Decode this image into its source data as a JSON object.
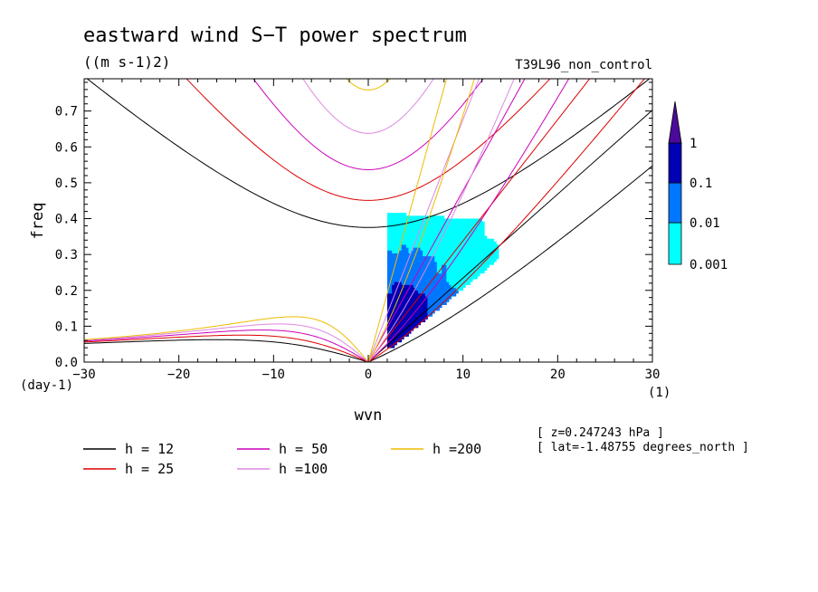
{
  "chart_data": {
    "type": "heatmap",
    "title": "eastward wind S−T power spectrum",
    "subtitle": "((m s-1)2)",
    "run_label": "T39L96_non_control",
    "xlabel": "wvn",
    "x_unit": "(1)",
    "ylabel": "freq",
    "y_unit": "(day-1)",
    "xlim": [
      -30,
      30
    ],
    "ylim": [
      0,
      0.79
    ],
    "x_ticks": [
      "-30",
      "-20",
      "-10",
      "0",
      "10",
      "20",
      "30"
    ],
    "y_ticks": [
      "0.0",
      "0.1",
      "0.2",
      "0.3",
      "0.4",
      "0.5",
      "0.6",
      "0.7"
    ],
    "colorbar": {
      "levels": [
        "0.001",
        "0.01",
        "0.1",
        "1"
      ],
      "colors": [
        "#00ffff",
        "#0077ff",
        "#0000b4",
        "#4b0a9a"
      ]
    },
    "shading": {
      "kmin": 2,
      "kmax": 16,
      "fmin": 0.04,
      "fmax": 0.42,
      "peak_wvn": 3.5,
      "peak_freq": 0.13
    },
    "dispersion_curves": [
      {
        "name": "h = 12",
        "h": 12,
        "color": "#000000"
      },
      {
        "name": "h = 25",
        "h": 25,
        "color": "#dd0000"
      },
      {
        "name": "h = 50",
        "h": 50,
        "color": "#cc00bb"
      },
      {
        "name": "h =100",
        "h": 100,
        "color": "#dd88dd"
      },
      {
        "name": "h =200",
        "h": 200,
        "color": "#eebb00"
      }
    ],
    "info": {
      "level": "[ z=0.247243 hPa ]",
      "latitude": "[ lat=-1.48755 degrees_north ]"
    }
  }
}
